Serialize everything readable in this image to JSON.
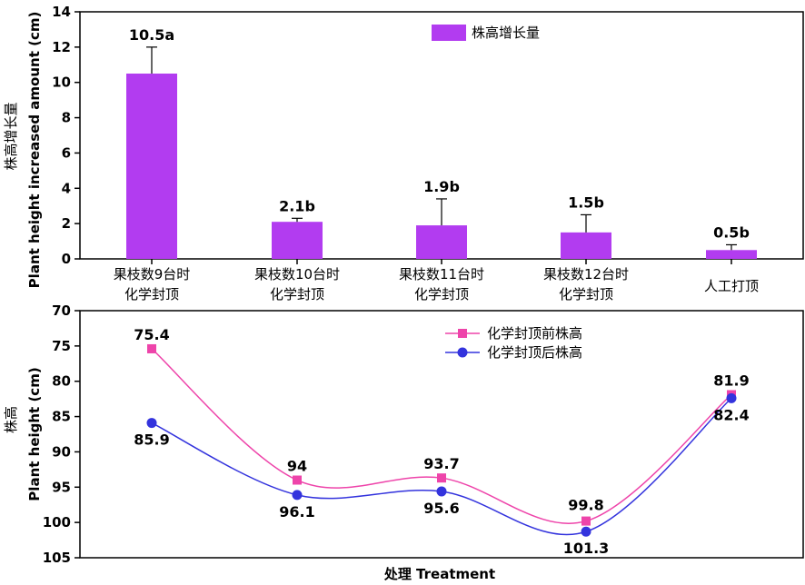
{
  "chart_data": [
    {
      "type": "bar",
      "categories": [
        [
          "果枝数9台时",
          "化学封顶"
        ],
        [
          "果枝数10台时",
          "化学封顶"
        ],
        [
          "果枝数11台时",
          "化学封顶"
        ],
        [
          "果枝数12台时",
          "化学封顶"
        ],
        [
          "人工打顶"
        ]
      ],
      "series": [
        {
          "name": "株高增长量",
          "values": [
            10.5,
            2.1,
            1.9,
            1.5,
            0.5
          ],
          "errors": [
            1.5,
            0.2,
            1.5,
            1.0,
            0.3
          ],
          "labels": [
            "10.5a",
            "2.1b",
            "1.9b",
            "1.5b",
            "0.5b"
          ],
          "color": "#b23cf0"
        }
      ],
      "ylabel_cn": "株高增长量",
      "ylabel_en": "Plant height increased amount (cm)",
      "ylim": [
        0,
        14
      ],
      "yticks": [
        0,
        2,
        4,
        6,
        8,
        10,
        12,
        14
      ],
      "legend": "top-right",
      "grid": false
    },
    {
      "type": "line",
      "x": [
        1,
        2,
        3,
        4,
        5
      ],
      "series": [
        {
          "name": "化学封顶前株高",
          "values": [
            75.4,
            94,
            93.7,
            99.8,
            81.9
          ],
          "labels": [
            "75.4",
            "94",
            "93.7",
            "99.8",
            "81.9"
          ],
          "marker": "square",
          "color": "#ee44aa"
        },
        {
          "name": "化学封顶后株高",
          "values": [
            85.9,
            96.1,
            95.6,
            101.3,
            82.4
          ],
          "labels": [
            "85.9",
            "96.1",
            "95.6",
            "101.3",
            "82.4"
          ],
          "marker": "circle",
          "color": "#3333dd"
        }
      ],
      "ylabel_cn": "株高",
      "ylabel_en": "Plant height (cm)",
      "xlabel": "处理 Treatment",
      "ylim": [
        70,
        105
      ],
      "y_inverted": true,
      "yticks": [
        70,
        75,
        80,
        85,
        90,
        95,
        100,
        105
      ],
      "legend": "top-center",
      "grid": false
    }
  ]
}
